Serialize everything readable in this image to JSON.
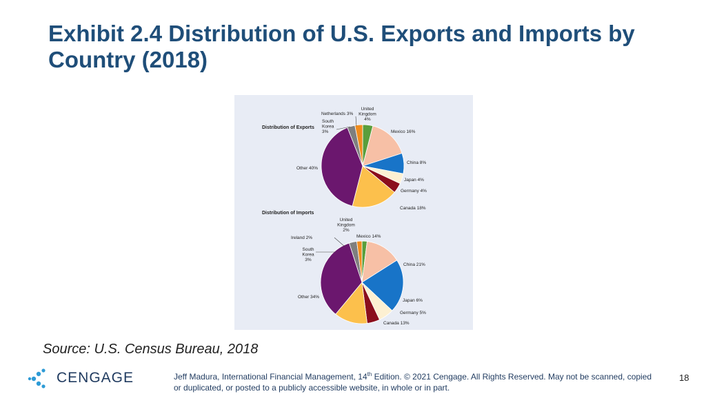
{
  "slide": {
    "title": "Exhibit 2.4 Distribution of U.S. Exports and Imports by Country (2018)",
    "source": "Source: U.S. Census Bureau, 2018",
    "footer_before_sup": "Jeff Madura, International Financial Management, 14",
    "footer_sup": "th",
    "footer_after_sup": " Edition. © 2021 Cengage. All Rights Reserved. May not be scanned, copied or duplicated, or posted to a publicly accessible website, in whole or in part.",
    "page_number": "18",
    "logo_text": "CENGAGE",
    "logo_icon": "cengage-dots-logo"
  },
  "colors": {
    "title": "#1f4e79",
    "United Kingdom": "#5a9e3c",
    "Mexico": "#f7c0a6",
    "China": "#1874c8",
    "Japan": "#fdf0d2",
    "Germany": "#8b0e1c",
    "Canada": "#fcc04c",
    "Other": "#6b176e",
    "South Korea": "#7f7f7f",
    "Netherlands": "#f08c1e",
    "Ireland": "#f08c1e"
  },
  "chart_data": [
    {
      "type": "pie",
      "title": "Distribution of Exports",
      "categories": [
        "United Kingdom",
        "Mexico",
        "China",
        "Japan",
        "Germany",
        "Canada",
        "Other",
        "South Korea",
        "Netherlands"
      ],
      "labels": [
        "United Kingdom 4%",
        "Mexico 16%",
        "China 8%",
        "Japan 4%",
        "Germany 4%",
        "Canada 18%",
        "Other 40%",
        "South Korea 3%",
        "Netherlands 3%"
      ],
      "values": [
        4,
        16,
        8,
        4,
        4,
        18,
        40,
        3,
        3
      ]
    },
    {
      "type": "pie",
      "title": "Distribution of Imports",
      "categories": [
        "United Kingdom",
        "Mexico",
        "China",
        "Japan",
        "Germany",
        "Canada",
        "Other",
        "South Korea",
        "Ireland"
      ],
      "labels": [
        "United Kingdom 2%",
        "Mexico 14%",
        "China 21%",
        "Japan 6%",
        "Germany 5%",
        "Canada 13%",
        "Other 34%",
        "South Korea 3%",
        "Ireland 2%"
      ],
      "values": [
        2,
        14,
        21,
        6,
        5,
        13,
        34,
        3,
        2
      ]
    }
  ]
}
